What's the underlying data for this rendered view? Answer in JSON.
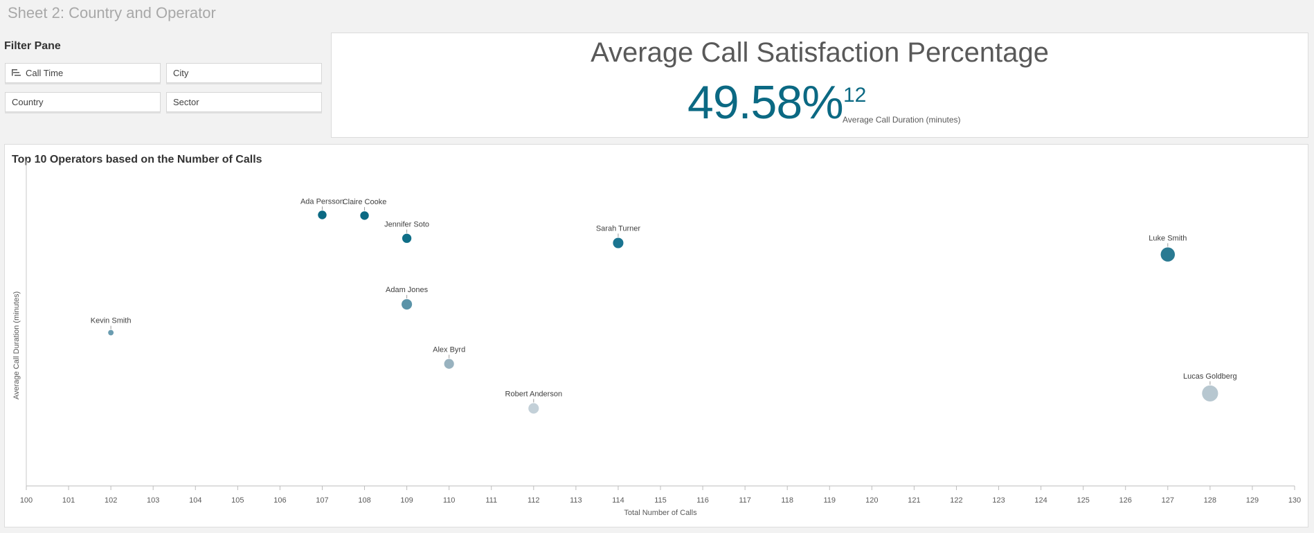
{
  "sheet_title": "Sheet 2: Country and Operator",
  "filter_pane": {
    "title": "Filter Pane",
    "filters": [
      "Call Time",
      "City",
      "Country",
      "Sector"
    ]
  },
  "kpi": {
    "title": "Average Call Satisfaction Percentage",
    "value": "49.58%",
    "secondary_value": "12",
    "secondary_label": "Average Call Duration (minutes)",
    "color": "#0b6983"
  },
  "chart_data": {
    "type": "scatter",
    "title": "Top 10 Operators based on the Number of Calls",
    "xlabel": "Total Number of Calls",
    "ylabel": "Average Call Duration (minutes)",
    "xlim": [
      100,
      130
    ],
    "ylim": [
      0,
      10
    ],
    "x_ticks": [
      100,
      101,
      102,
      103,
      104,
      105,
      106,
      107,
      108,
      109,
      110,
      111,
      112,
      113,
      114,
      115,
      116,
      117,
      118,
      119,
      120,
      121,
      122,
      123,
      124,
      125,
      126,
      127,
      128,
      129,
      130
    ],
    "grid": false,
    "points": [
      {
        "name": "Ada Persson",
        "x": 107,
        "y": 8.7,
        "size": 0.3,
        "color": "#0b6983"
      },
      {
        "name": "Claire Cooke",
        "x": 108,
        "y": 8.68,
        "size": 0.3,
        "color": "#0b6983"
      },
      {
        "name": "Jennifer Soto",
        "x": 109,
        "y": 7.95,
        "size": 0.35,
        "color": "#0f6e87"
      },
      {
        "name": "Sarah Turner",
        "x": 114,
        "y": 7.8,
        "size": 0.45,
        "color": "#1a7490"
      },
      {
        "name": "Luke Smith",
        "x": 127,
        "y": 7.43,
        "size": 0.75,
        "color": "#2a7a92"
      },
      {
        "name": "Adam Jones",
        "x": 109,
        "y": 5.83,
        "size": 0.45,
        "color": "#5a93a8"
      },
      {
        "name": "Kevin Smith",
        "x": 102,
        "y": 4.92,
        "size": 0.05,
        "color": "#6a9cb0"
      },
      {
        "name": "Alex Byrd",
        "x": 110,
        "y": 3.92,
        "size": 0.4,
        "color": "#98b2bf"
      },
      {
        "name": "Robert Anderson",
        "x": 112,
        "y": 2.49,
        "size": 0.45,
        "color": "#c3d0d8"
      },
      {
        "name": "Lucas Goldberg",
        "x": 128,
        "y": 2.97,
        "size": 0.9,
        "color": "#b7c7d0"
      }
    ]
  }
}
